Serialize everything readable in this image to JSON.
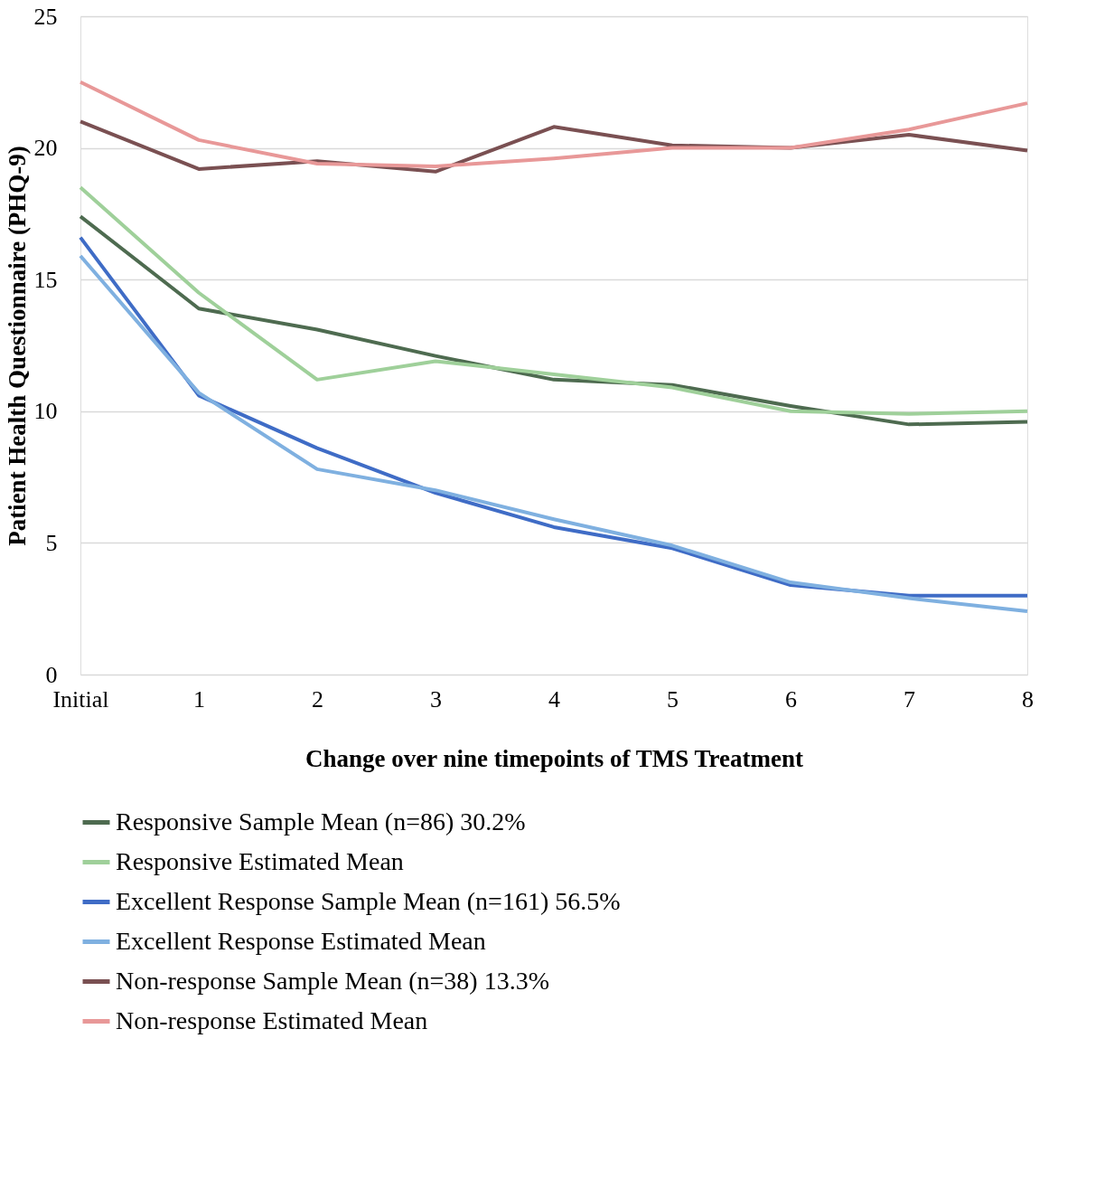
{
  "chart_data": {
    "type": "line",
    "xlabel": "Change over nine timepoints of TMS Treatment",
    "ylabel": "Patient Health Questionnaire (PHQ-9)",
    "categories": [
      "Initial",
      "1",
      "2",
      "3",
      "4",
      "5",
      "6",
      "7",
      "8"
    ],
    "series": [
      {
        "name": "Responsive Sample Mean (n=86) 30.2%",
        "color": "#4e6b50",
        "values": [
          17.4,
          13.9,
          13.1,
          12.1,
          11.2,
          11.0,
          10.2,
          9.5,
          9.6
        ]
      },
      {
        "name": "Responsive Estimated Mean",
        "color": "#9fd09a",
        "values": [
          18.5,
          14.5,
          11.2,
          11.9,
          11.4,
          10.9,
          10.0,
          9.9,
          10.0
        ]
      },
      {
        "name": "Excellent Response Sample Mean (n=161) 56.5%",
        "color": "#3f6cc6",
        "values": [
          16.6,
          10.6,
          8.6,
          6.9,
          5.6,
          4.8,
          3.4,
          3.0,
          3.0
        ]
      },
      {
        "name": "Excellent Response Estimated Mean",
        "color": "#7fb0e0",
        "values": [
          15.9,
          10.7,
          7.8,
          7.0,
          5.9,
          4.9,
          3.5,
          2.9,
          2.4
        ]
      },
      {
        "name": "Non-response Sample Mean (n=38) 13.3%",
        "color": "#7a5052",
        "values": [
          21.0,
          19.2,
          19.5,
          19.1,
          20.8,
          20.1,
          20.0,
          20.5,
          19.9
        ]
      },
      {
        "name": "Non-response Estimated Mean",
        "color": "#e89898",
        "values": [
          22.5,
          20.3,
          19.4,
          19.3,
          19.6,
          20.0,
          20.0,
          20.7,
          21.7
        ]
      }
    ],
    "ylim": [
      0,
      25
    ],
    "yticks": [
      0,
      5,
      10,
      15,
      20,
      25
    ],
    "grid": "y",
    "legend": "bottom",
    "marker": "none",
    "line_style": "solid"
  }
}
